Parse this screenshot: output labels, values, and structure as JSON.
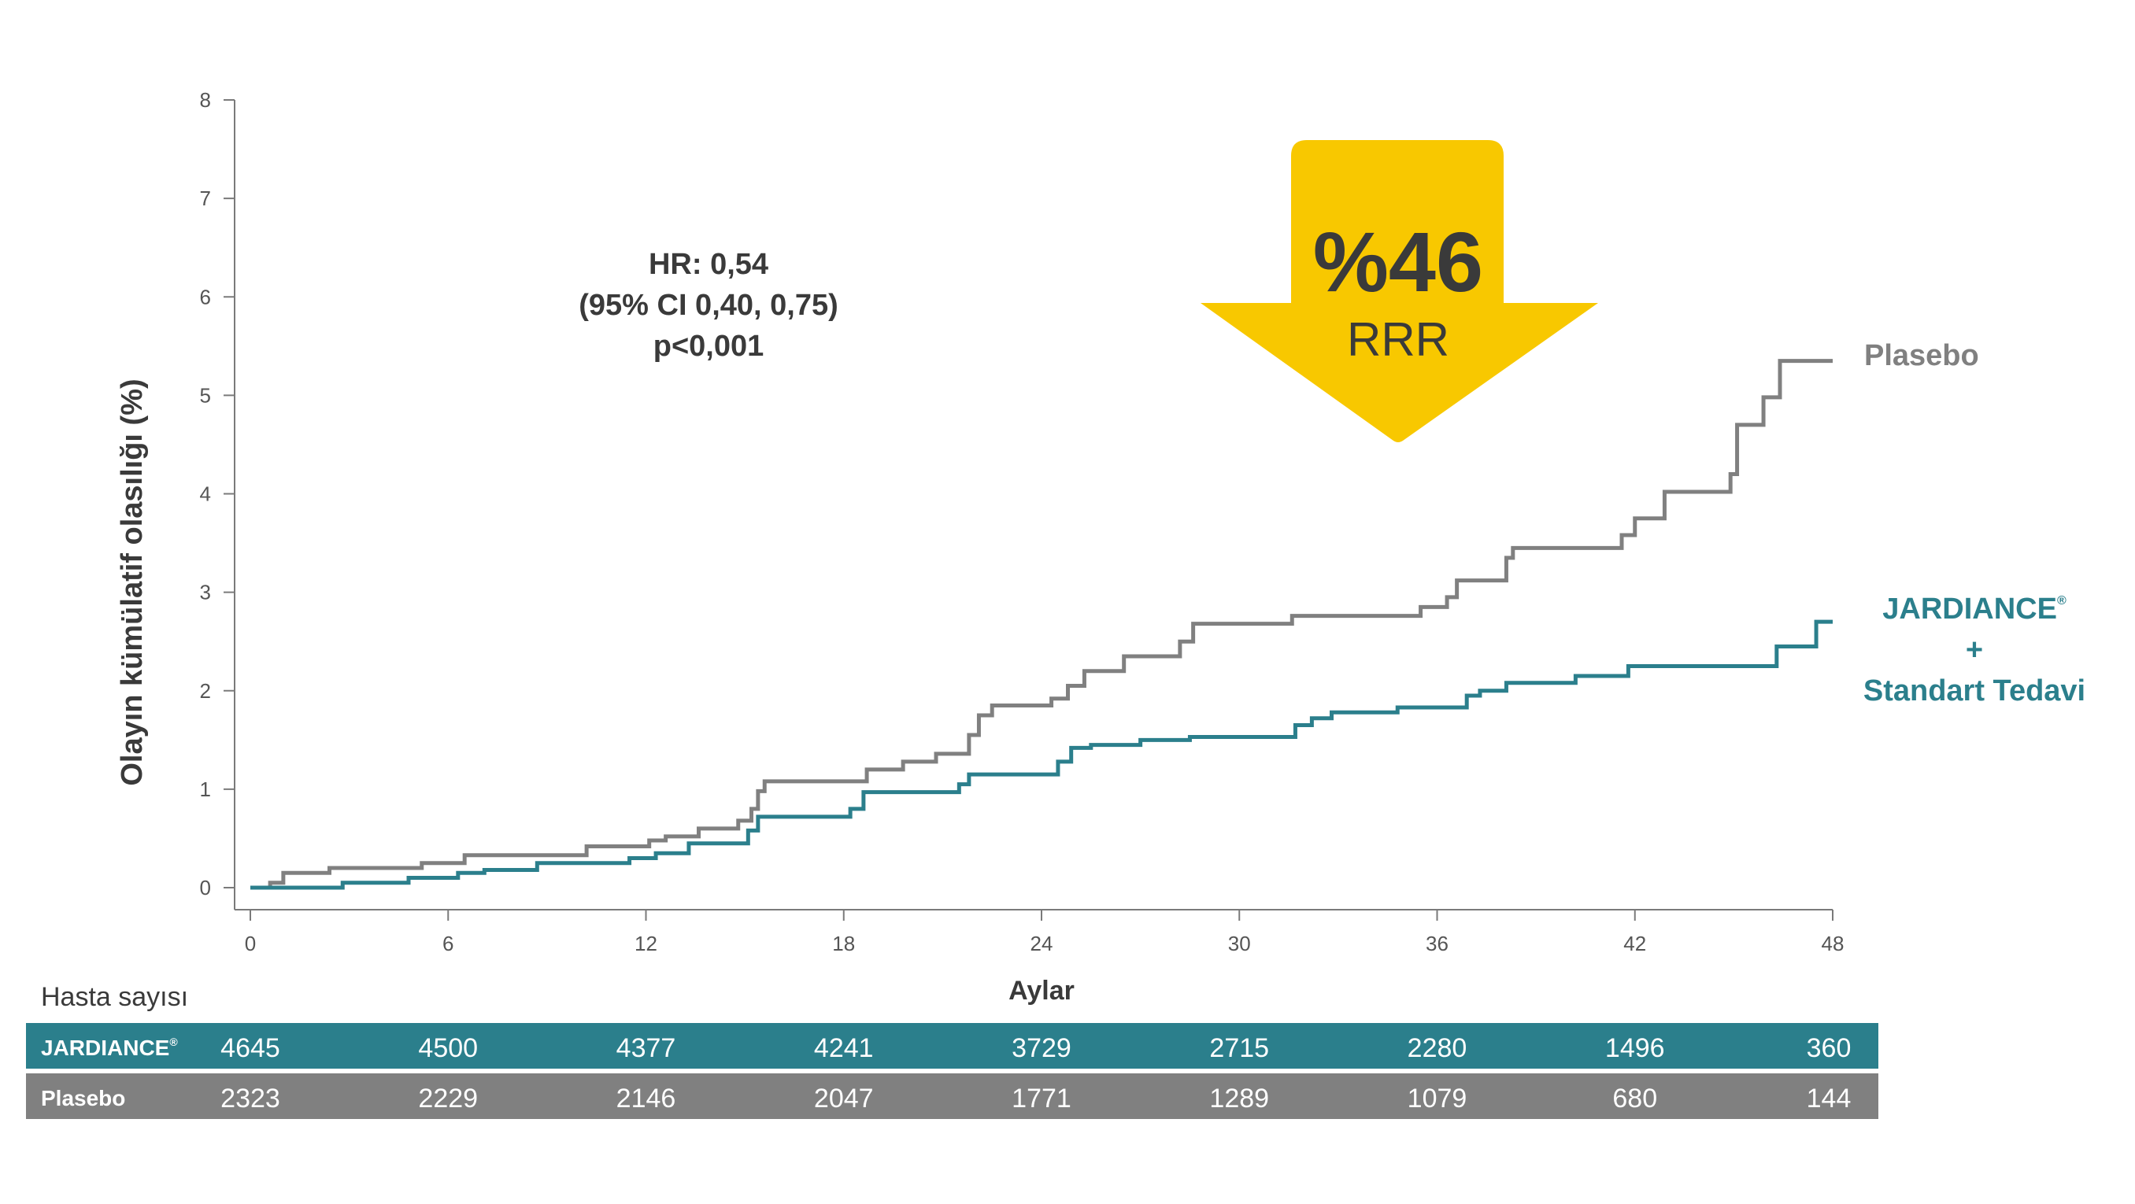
{
  "colors": {
    "jardiance": "#2b7f8c",
    "placebo": "#808080",
    "arrow": "#f8c800",
    "axis": "#7a7a7a",
    "text": "#3a3a3a"
  },
  "chart_data": {
    "type": "line",
    "ylabel": "Olayın kümülatif olasılığı (%)",
    "xlabel": "Aylar",
    "xlim": [
      0,
      48
    ],
    "ylim": [
      0,
      8
    ],
    "x_ticks": [
      0,
      6,
      12,
      18,
      24,
      30,
      36,
      42,
      48
    ],
    "y_ticks": [
      0,
      1,
      2,
      3,
      4,
      5,
      6,
      7,
      8
    ],
    "grid": false,
    "annotation": {
      "hr_lines": [
        "HR: 0,54",
        "(95% CI 0,40, 0,75)",
        "p<0,001"
      ],
      "reduction": "%46",
      "reduction_label": "RRR"
    },
    "series": [
      {
        "name": "Plasebo",
        "color": "#808080",
        "x": [
          0,
          0.6,
          1.0,
          2.4,
          5.2,
          6.5,
          10.2,
          12.1,
          12.6,
          13.6,
          14.8,
          15.2,
          15.4,
          15.6,
          18.7,
          19.8,
          20.8,
          21.8,
          22.1,
          22.5,
          24.3,
          24.8,
          25.3,
          26.5,
          28.2,
          28.6,
          31.6,
          35.5,
          36.3,
          36.6,
          38.1,
          38.3,
          41.6,
          42.0,
          42.9,
          44.9,
          45.1,
          45.9,
          46.4,
          48.0
        ],
        "y": [
          0,
          0.05,
          0.15,
          0.2,
          0.25,
          0.33,
          0.42,
          0.48,
          0.52,
          0.6,
          0.68,
          0.8,
          0.98,
          1.08,
          1.2,
          1.28,
          1.36,
          1.55,
          1.75,
          1.85,
          1.92,
          2.05,
          2.2,
          2.35,
          2.5,
          2.68,
          2.76,
          2.85,
          2.95,
          3.12,
          3.35,
          3.45,
          3.58,
          3.75,
          4.02,
          4.2,
          4.7,
          4.98,
          5.35,
          5.35
        ]
      },
      {
        "name": "JARDIANCE® + Standart Tedavi",
        "color": "#2b7f8c",
        "x": [
          0,
          2.8,
          4.8,
          6.3,
          7.1,
          8.7,
          11.5,
          12.3,
          13.3,
          15.1,
          15.4,
          18.2,
          18.6,
          21.5,
          21.8,
          24.5,
          24.9,
          25.5,
          27.0,
          28.5,
          31.7,
          32.2,
          32.8,
          34.8,
          36.9,
          37.3,
          38.1,
          40.2,
          41.8,
          46.3,
          47.5,
          48.0
        ],
        "y": [
          0,
          0.05,
          0.1,
          0.15,
          0.18,
          0.25,
          0.3,
          0.35,
          0.45,
          0.58,
          0.72,
          0.8,
          0.97,
          1.05,
          1.15,
          1.28,
          1.42,
          1.45,
          1.5,
          1.53,
          1.65,
          1.72,
          1.78,
          1.83,
          1.95,
          2.0,
          2.08,
          2.15,
          2.25,
          2.45,
          2.7,
          2.7
        ]
      }
    ],
    "legend": {
      "placebo": "Plasebo",
      "jardiance_line1": "JARDIANCE",
      "jardiance_reg": "®",
      "jardiance_line2": "+",
      "jardiance_line3": "Standart Tedavi"
    },
    "risk_table": {
      "title": "Hasta sayısı",
      "rows": [
        {
          "name": "JARDIANCE",
          "reg": "®",
          "values": [
            "4645",
            "4500",
            "4377",
            "4241",
            "3729",
            "2715",
            "2280",
            "1496",
            "360"
          ]
        },
        {
          "name": "Plasebo",
          "reg": "",
          "values": [
            "2323",
            "2229",
            "2146",
            "2047",
            "1771",
            "1289",
            "1079",
            "680",
            "144"
          ]
        }
      ]
    }
  }
}
